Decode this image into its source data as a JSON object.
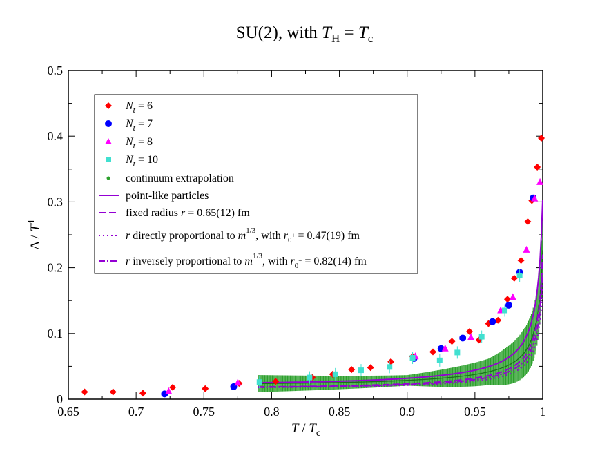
{
  "chart_data": {
    "type": "scatter",
    "title": {
      "prefix": "SU(2), with ",
      "T": "T",
      "H": "H",
      "eq": " = ",
      "T2": "T",
      "c": "c"
    },
    "xlabel": {
      "T": "T",
      "slash": " / ",
      "Tc": "T",
      "c": "c"
    },
    "ylabel": {
      "delta": "Δ / ",
      "T": "T",
      "exp": "4"
    },
    "xlim": [
      0.65,
      1.0
    ],
    "ylim": [
      0,
      0.5
    ],
    "xticks": [
      "0.65",
      "0.7",
      "0.75",
      "0.8",
      "0.85",
      "0.9",
      "0.95",
      "1"
    ],
    "yticks": [
      "0",
      "0.1",
      "0.2",
      "0.3",
      "0.4",
      "0.5"
    ],
    "colors": {
      "nt6": "#ff0000",
      "nt7": "#0000ff",
      "nt8": "#ff00ff",
      "nt10": "#40e0d0",
      "continuum": "#2ca02c",
      "curves": "#9400d3"
    },
    "legend": {
      "nt6": {
        "N": "N",
        "sub": "t",
        "rest": " = 6"
      },
      "nt7": {
        "N": "N",
        "sub": "t",
        "rest": " = 7"
      },
      "nt8": {
        "N": "N",
        "sub": "t",
        "rest": " = 8"
      },
      "nt10": {
        "N": "N",
        "sub": "t",
        "rest": " = 10"
      },
      "continuum": "continuum extrapolation",
      "point": "point-like particles",
      "fixed": {
        "pre": "fixed radius ",
        "r": "r",
        "post": " = 0.65(12) fm"
      },
      "direct": {
        "r": "r",
        "mid": " directly proportional to ",
        "m": "m",
        "exp": "1/3",
        "with": ", with ",
        "r0": "r",
        "sub0": "0",
        "plus": "+",
        "val": " = 0.47(19) fm"
      },
      "inverse": {
        "r": "r",
        "mid": " inversely proportional to ",
        "m": "m",
        "exp": "1/3",
        "with": ", with ",
        "r0": "r",
        "sub0": "0",
        "plus": "+",
        "val": " = 0.82(14) fm"
      }
    },
    "series": [
      {
        "name": "Nt = 6",
        "marker": "diamond",
        "color": "#ff0000",
        "x": [
          0.662,
          0.683,
          0.705,
          0.727,
          0.751,
          0.776,
          0.803,
          0.83,
          0.845,
          0.859,
          0.873,
          0.888,
          0.904,
          0.919,
          0.933,
          0.946,
          0.953,
          0.96,
          0.967,
          0.974,
          0.979,
          0.984,
          0.989,
          0.992,
          0.996,
          0.999
        ],
        "y": [
          0.011,
          0.011,
          0.009,
          0.018,
          0.016,
          0.024,
          0.027,
          0.033,
          0.038,
          0.045,
          0.048,
          0.057,
          0.065,
          0.072,
          0.088,
          0.103,
          0.09,
          0.115,
          0.12,
          0.152,
          0.184,
          0.211,
          0.27,
          0.302,
          0.353,
          0.397
        ]
      },
      {
        "name": "Nt = 7",
        "marker": "circle",
        "color": "#0000ff",
        "x": [
          0.721,
          0.772,
          0.905,
          0.925,
          0.941,
          0.963,
          0.975,
          0.983,
          0.993
        ],
        "y": [
          0.008,
          0.019,
          0.062,
          0.077,
          0.093,
          0.118,
          0.143,
          0.193,
          0.306
        ]
      },
      {
        "name": "Nt = 8",
        "marker": "triangle",
        "color": "#ff00ff",
        "x": [
          0.724,
          0.775,
          0.906,
          0.928,
          0.947,
          0.969,
          0.978,
          0.988,
          0.994,
          0.998
        ],
        "y": [
          0.012,
          0.025,
          0.065,
          0.077,
          0.094,
          0.135,
          0.155,
          0.227,
          0.305,
          0.33
        ]
      },
      {
        "name": "Nt = 10",
        "marker": "square",
        "color": "#40e0d0",
        "x": [
          0.791,
          0.828,
          0.847,
          0.866,
          0.887,
          0.904,
          0.924,
          0.937,
          0.955,
          0.972,
          0.983
        ],
        "y": [
          0.026,
          0.033,
          0.038,
          0.044,
          0.049,
          0.063,
          0.059,
          0.071,
          0.095,
          0.135,
          0.188
        ]
      }
    ],
    "continuum_band": {
      "x_range": [
        0.79,
        1.0
      ],
      "x_start": 0.79,
      "y_start": 0.025,
      "center_model": {
        "a": 0.0008,
        "b": 0.7,
        "c": 0.02
      },
      "half_width": [
        {
          "x": 0.79,
          "e": 0.013
        },
        {
          "x": 0.9,
          "e": 0.008
        },
        {
          "x": 0.96,
          "e": 0.02
        },
        {
          "x": 1.0,
          "e": 0.045
        }
      ]
    },
    "curves": [
      {
        "name": "point-like particles",
        "style": "solid",
        "model": {
          "a": 0.0011,
          "b": 0.92,
          "c": 0.02
        }
      },
      {
        "name": "fixed radius",
        "style": "dashed",
        "model": {
          "a": 0.0008,
          "b": 0.55,
          "c": 0.015
        }
      },
      {
        "name": "r directly proportional",
        "style": "dotted",
        "model": {
          "a": 0.0006,
          "b": 0.35,
          "c": 0.015
        }
      },
      {
        "name": "r inversely proportional",
        "style": "dashdot",
        "model": {
          "a": 0.0007,
          "b": 0.45,
          "c": 0.015
        }
      }
    ]
  }
}
